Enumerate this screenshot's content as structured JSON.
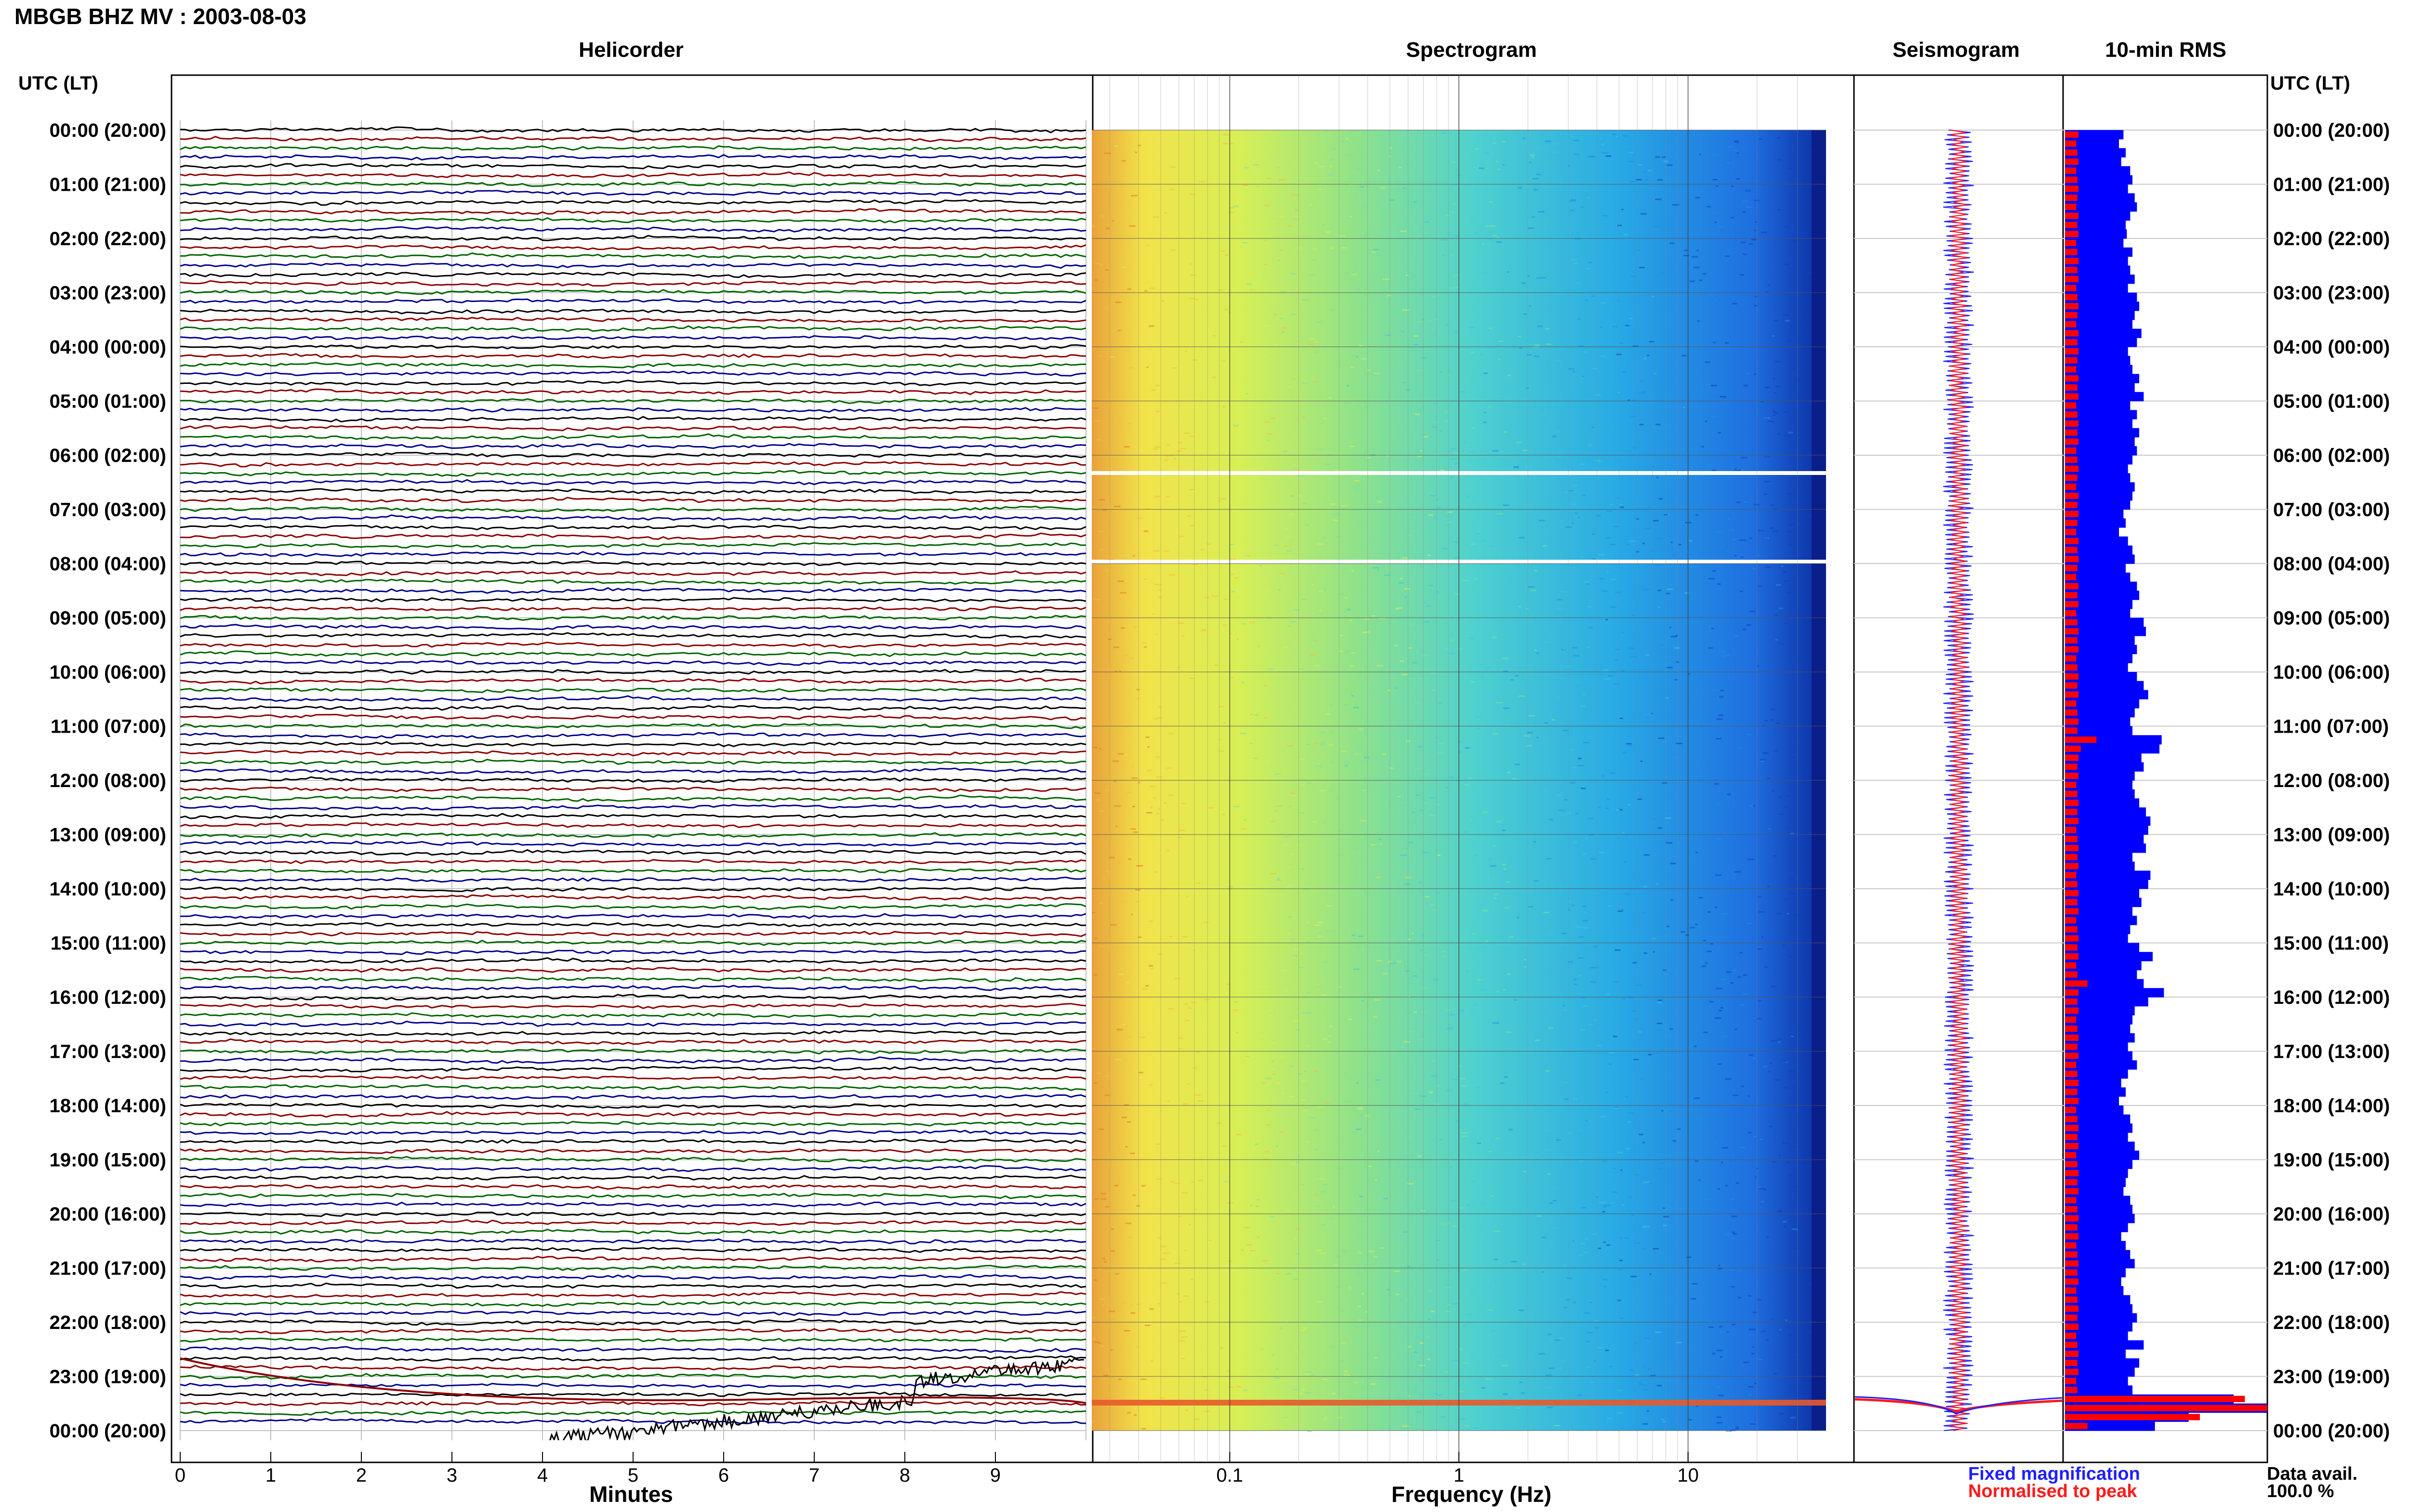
{
  "header": {
    "station_title": "MBGB BHZ MV : 2003-08-03",
    "time_axis_label": "UTC (LT)"
  },
  "panels": {
    "helicorder": "Helicorder",
    "spectrogram": "Spectrogram",
    "seismogram": "Seismogram",
    "rms": "10-min RMS"
  },
  "axes": {
    "helicorder_xlabel": "Minutes",
    "helicorder_ticks": [
      "0",
      "1",
      "2",
      "3",
      "4",
      "5",
      "6",
      "7",
      "8",
      "9"
    ],
    "spectrogram_xlabel": "Frequency (Hz)",
    "spectrogram_ticks": [
      "0.1",
      "1",
      "10"
    ]
  },
  "time_labels": [
    "00:00 (20:00)",
    "01:00 (21:00)",
    "02:00 (22:00)",
    "03:00 (23:00)",
    "04:00 (00:00)",
    "05:00 (01:00)",
    "06:00 (02:00)",
    "07:00 (03:00)",
    "08:00 (04:00)",
    "09:00 (05:00)",
    "10:00 (06:00)",
    "11:00 (07:00)",
    "12:00 (08:00)",
    "13:00 (09:00)",
    "14:00 (10:00)",
    "15:00 (11:00)",
    "16:00 (12:00)",
    "17:00 (13:00)",
    "18:00 (14:00)",
    "19:00 (15:00)",
    "20:00 (16:00)",
    "21:00 (17:00)",
    "22:00 (18:00)",
    "23:00 (19:00)",
    "00:00 (20:00)"
  ],
  "legend": {
    "fixed": "Fixed magnification",
    "normalised": "Normalised to peak",
    "fixed_color": "#1f1fff",
    "normalised_color": "#ff1a1a"
  },
  "data_availability": {
    "label": "Data avail.",
    "value": "100.0 %"
  },
  "colors": {
    "trace_cycle": [
      "#000000",
      "#8b0000",
      "#006400",
      "#00008b"
    ],
    "rms_bar": "#0000ff",
    "rms_peak": "#ff0000"
  },
  "chart_data": {
    "type": "bar",
    "title": "10-min RMS",
    "orientation": "horizontal",
    "interval_minutes": 10,
    "hours_utc": 24,
    "values": [
      52,
      48,
      54,
      50,
      58,
      60,
      56,
      62,
      64,
      58,
      54,
      55,
      52,
      60,
      56,
      58,
      62,
      56,
      64,
      66,
      62,
      60,
      68,
      64,
      56,
      58,
      60,
      66,
      62,
      70,
      58,
      64,
      60,
      66,
      62,
      64,
      60,
      56,
      58,
      62,
      60,
      58,
      52,
      54,
      48,
      56,
      60,
      62,
      54,
      58,
      64,
      66,
      60,
      58,
      70,
      72,
      62,
      64,
      60,
      56,
      64,
      70,
      74,
      66,
      62,
      58,
      60,
      86,
      84,
      68,
      70,
      62,
      60,
      62,
      66,
      72,
      76,
      74,
      70,
      72,
      60,
      62,
      76,
      74,
      66,
      68,
      60,
      64,
      58,
      56,
      66,
      78,
      68,
      64,
      70,
      88,
      74,
      62,
      60,
      58,
      62,
      56,
      60,
      64,
      56,
      50,
      54,
      48,
      52,
      58,
      60,
      56,
      62,
      66,
      60,
      56,
      54,
      52,
      58,
      60,
      62,
      56,
      50,
      54,
      58,
      62,
      54,
      50,
      52,
      58,
      60,
      64,
      60,
      56,
      70,
      54,
      66,
      62,
      56,
      60,
      150,
      180,
      110,
      80
    ],
    "peak_normalised": [
      12,
      10,
      11,
      12,
      10,
      11,
      12,
      11,
      10,
      12,
      11,
      12,
      10,
      11,
      12,
      11,
      12,
      10,
      11,
      12,
      11,
      10,
      12,
      11,
      12,
      11,
      10,
      12,
      11,
      12,
      10,
      11,
      12,
      11,
      12,
      10,
      11,
      12,
      11,
      10,
      12,
      11,
      12,
      11,
      10,
      12,
      11,
      12,
      11,
      10,
      12,
      11,
      12,
      10,
      11,
      12,
      11,
      12,
      10,
      11,
      12,
      11,
      12,
      10,
      11,
      12,
      11,
      28,
      14,
      12,
      11,
      12,
      10,
      11,
      12,
      11,
      12,
      10,
      11,
      12,
      11,
      12,
      10,
      11,
      12,
      11,
      12,
      10,
      11,
      12,
      11,
      12,
      10,
      11,
      20,
      12,
      11,
      12,
      10,
      11,
      12,
      11,
      12,
      10,
      11,
      12,
      11,
      12,
      10,
      11,
      12,
      11,
      12,
      10,
      11,
      12,
      11,
      12,
      10,
      11,
      12,
      11,
      12,
      10,
      11,
      12,
      11,
      12,
      10,
      11,
      12,
      11,
      12,
      10,
      11,
      12,
      11,
      12,
      10,
      11,
      160,
      200,
      120,
      20
    ]
  }
}
